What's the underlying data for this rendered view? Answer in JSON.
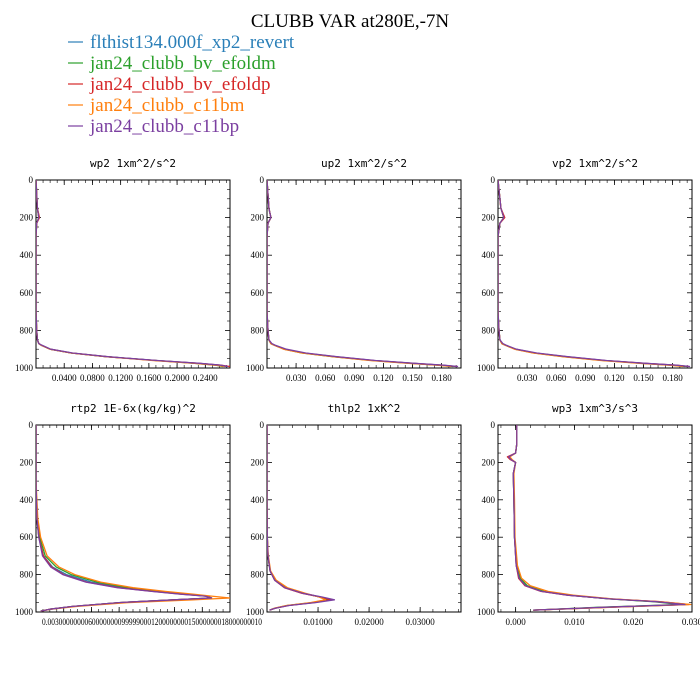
{
  "title": "CLUBB VAR at280E,-7N",
  "legend": [
    {
      "name": "flthist134.000f_xp2_revert",
      "color": "#2a7fb8"
    },
    {
      "name": "jan24_clubb_bv_efoldm",
      "color": "#2ca02c"
    },
    {
      "name": "jan24_clubb_bv_efoldp",
      "color": "#d62728"
    },
    {
      "name": "jan24_clubb_c11bm",
      "color": "#ff7f0e"
    },
    {
      "name": "jan24_clubb_c11bp",
      "color": "#7b3fa0"
    }
  ],
  "chart_data": [
    {
      "type": "line",
      "title": "wp2  1xm^2/s^2",
      "ylim": [
        1000,
        0
      ],
      "yticks": [
        0,
        200,
        400,
        600,
        800,
        1000
      ],
      "xlim": [
        0,
        0.275
      ],
      "xticks": [
        0.04,
        0.08,
        0.12,
        0.16,
        0.2,
        0.24
      ],
      "xtick_labels": [
        "0.0400",
        "0.0800",
        "0.1200",
        "0.1600",
        "0.2000",
        "0.2400"
      ],
      "y": [
        0,
        150,
        200,
        230,
        300,
        500,
        700,
        800,
        850,
        870,
        880,
        900,
        920,
        940,
        960,
        975,
        985,
        992
      ],
      "series": [
        {
          "name": "flthist134.000f_xp2_revert",
          "x": [
            0,
            0.002,
            0.004,
            0.001,
            0,
            0,
            0,
            0.001,
            0.002,
            0.004,
            0.008,
            0.02,
            0.05,
            0.1,
            0.17,
            0.23,
            0.26,
            0.27
          ]
        },
        {
          "name": "jan24_clubb_bv_efoldm",
          "x": [
            0,
            0.002,
            0.004,
            0.001,
            0,
            0,
            0,
            0.001,
            0.002,
            0.004,
            0.008,
            0.02,
            0.05,
            0.1,
            0.17,
            0.225,
            0.255,
            0.265
          ]
        },
        {
          "name": "jan24_clubb_bv_efoldp",
          "x": [
            0,
            0.002,
            0.005,
            0.001,
            0,
            0,
            0,
            0.001,
            0.002,
            0.004,
            0.008,
            0.02,
            0.05,
            0.1,
            0.17,
            0.23,
            0.262,
            0.275
          ]
        },
        {
          "name": "jan24_clubb_c11bm",
          "x": [
            0,
            0.002,
            0.004,
            0.001,
            0,
            0,
            0,
            0.001,
            0.002,
            0.004,
            0.008,
            0.02,
            0.05,
            0.1,
            0.165,
            0.225,
            0.255,
            0.268
          ]
        },
        {
          "name": "jan24_clubb_c11bp",
          "x": [
            0,
            0.002,
            0.004,
            0.001,
            0,
            0,
            0,
            0.001,
            0.002,
            0.004,
            0.009,
            0.021,
            0.052,
            0.102,
            0.172,
            0.232,
            0.262,
            0.272
          ]
        }
      ]
    },
    {
      "type": "line",
      "title": "up2  1xm^2/s^2",
      "ylim": [
        1000,
        0
      ],
      "yticks": [
        0,
        200,
        400,
        600,
        800,
        1000
      ],
      "xlim": [
        0,
        0.2
      ],
      "xticks": [
        0.03,
        0.06,
        0.09,
        0.12,
        0.15,
        0.18
      ],
      "xtick_labels": [
        "0.030",
        "0.060",
        "0.090",
        "0.120",
        "0.150",
        "0.180"
      ],
      "y": [
        0,
        150,
        200,
        230,
        300,
        500,
        700,
        800,
        850,
        870,
        880,
        900,
        920,
        940,
        960,
        975,
        985,
        992
      ],
      "series": [
        {
          "name": "flthist134.000f_xp2_revert",
          "x": [
            0,
            0.002,
            0.004,
            0.001,
            0,
            0,
            0,
            0.001,
            0.002,
            0.004,
            0.008,
            0.018,
            0.038,
            0.07,
            0.11,
            0.15,
            0.18,
            0.195
          ]
        },
        {
          "name": "jan24_clubb_bv_efoldm",
          "x": [
            0,
            0.002,
            0.004,
            0.001,
            0,
            0,
            0,
            0.001,
            0.002,
            0.004,
            0.008,
            0.018,
            0.036,
            0.068,
            0.108,
            0.148,
            0.177,
            0.192
          ]
        },
        {
          "name": "jan24_clubb_bv_efoldp",
          "x": [
            0,
            0.002,
            0.004,
            0.001,
            0,
            0,
            0,
            0.001,
            0.002,
            0.004,
            0.008,
            0.018,
            0.038,
            0.07,
            0.11,
            0.15,
            0.18,
            0.196
          ]
        },
        {
          "name": "jan24_clubb_c11bm",
          "x": [
            0,
            0.002,
            0.004,
            0.001,
            0,
            0,
            0,
            0.001,
            0.002,
            0.004,
            0.008,
            0.017,
            0.036,
            0.068,
            0.106,
            0.146,
            0.176,
            0.19
          ]
        },
        {
          "name": "jan24_clubb_c11bp",
          "x": [
            0,
            0.002,
            0.004,
            0.001,
            0,
            0,
            0,
            0.001,
            0.002,
            0.005,
            0.009,
            0.02,
            0.04,
            0.072,
            0.112,
            0.152,
            0.182,
            0.197
          ]
        }
      ]
    },
    {
      "type": "line",
      "title": "vp2  1xm^2/s^2",
      "ylim": [
        1000,
        0
      ],
      "yticks": [
        0,
        200,
        400,
        600,
        800,
        1000
      ],
      "xlim": [
        0,
        0.2
      ],
      "xticks": [
        0.03,
        0.06,
        0.09,
        0.12,
        0.15,
        0.18
      ],
      "xtick_labels": [
        "0.030",
        "0.060",
        "0.090",
        "0.120",
        "0.150",
        "0.180"
      ],
      "y": [
        0,
        150,
        200,
        230,
        300,
        500,
        700,
        800,
        850,
        870,
        880,
        900,
        920,
        940,
        960,
        975,
        985,
        992
      ],
      "series": [
        {
          "name": "flthist134.000f_xp2_revert",
          "x": [
            0,
            0.003,
            0.006,
            0.002,
            0,
            0,
            0,
            0.001,
            0.002,
            0.004,
            0.008,
            0.018,
            0.038,
            0.07,
            0.11,
            0.15,
            0.182,
            0.196
          ]
        },
        {
          "name": "jan24_clubb_bv_efoldm",
          "x": [
            0,
            0.003,
            0.006,
            0.002,
            0,
            0,
            0,
            0.001,
            0.002,
            0.004,
            0.008,
            0.018,
            0.037,
            0.068,
            0.108,
            0.148,
            0.179,
            0.193
          ]
        },
        {
          "name": "jan24_clubb_bv_efoldp",
          "x": [
            0,
            0.003,
            0.007,
            0.002,
            0,
            0,
            0,
            0.001,
            0.002,
            0.004,
            0.008,
            0.018,
            0.038,
            0.07,
            0.11,
            0.151,
            0.183,
            0.197
          ]
        },
        {
          "name": "jan24_clubb_c11bm",
          "x": [
            0,
            0.003,
            0.006,
            0.002,
            0,
            0,
            0,
            0.001,
            0.002,
            0.004,
            0.008,
            0.017,
            0.036,
            0.067,
            0.106,
            0.146,
            0.177,
            0.191
          ]
        },
        {
          "name": "jan24_clubb_c11bp",
          "x": [
            0,
            0.003,
            0.006,
            0.002,
            0,
            0,
            0,
            0.001,
            0.002,
            0.005,
            0.009,
            0.019,
            0.04,
            0.072,
            0.112,
            0.152,
            0.184,
            0.198
          ]
        }
      ]
    },
    {
      "type": "line",
      "title": "rtp2  1E-6x(kg/kg)^2",
      "ylim": [
        1000,
        0
      ],
      "yticks": [
        0,
        200,
        400,
        600,
        800,
        1000
      ],
      "xlim": [
        0,
        2.1e-06
      ],
      "xticks": [
        3e-07,
        6e-07,
        9e-07,
        1.2e-06,
        1.5e-06,
        1.8e-06
      ],
      "xtick_labels": [
        "0.0000003",
        "0.0000006",
        "0.0000009",
        "0.0000012",
        "0.0000015",
        "0.0000018"
      ],
      "xtick_text": "0.0030000000060000000099999000120000000015000000018000000010",
      "y": [
        0,
        300,
        500,
        600,
        700,
        760,
        800,
        840,
        870,
        890,
        905,
        915,
        925,
        935,
        950,
        970,
        985,
        995
      ],
      "series": [
        {
          "name": "flthist134.000f_xp2_revert",
          "x": [
            0,
            0,
            1e-08,
            3e-08,
            8e-08,
            1.8e-07,
            3.3e-07,
            6e-07,
            9.5e-07,
            1.3e-06,
            1.6e-06,
            1.85e-06,
            1.9e-06,
            1.5e-06,
            9e-07,
            4e-07,
            1.5e-07,
            5e-08
          ]
        },
        {
          "name": "jan24_clubb_bv_efoldm",
          "x": [
            0,
            0,
            1e-08,
            4e-08,
            1e-07,
            2.2e-07,
            3.8e-07,
            6.6e-07,
            1e-06,
            1.34e-06,
            1.63e-06,
            1.85e-06,
            1.9e-06,
            1.5e-06,
            9e-07,
            4e-07,
            1.5e-07,
            5e-08
          ]
        },
        {
          "name": "jan24_clubb_bv_efoldp",
          "x": [
            0,
            0,
            1e-08,
            3e-08,
            8e-08,
            1.7e-07,
            3e-07,
            5.5e-07,
            9e-07,
            1.26e-06,
            1.58e-06,
            1.84e-06,
            1.9e-06,
            1.5e-06,
            9e-07,
            4e-07,
            1.5e-07,
            5e-08
          ]
        },
        {
          "name": "jan24_clubb_c11bm",
          "x": [
            0,
            0,
            2e-08,
            5e-08,
            1.2e-07,
            2.5e-07,
            4.2e-07,
            7e-07,
            1.05e-06,
            1.4e-06,
            1.7e-06,
            1.9e-06,
            2.1e-06,
            1.7e-06,
            1e-06,
            4.5e-07,
            1.6e-07,
            5e-08
          ]
        },
        {
          "name": "jan24_clubb_c11bp",
          "x": [
            0,
            0,
            1e-08,
            3e-08,
            7e-08,
            1.6e-07,
            2.9e-07,
            5.4e-07,
            8.8e-07,
            1.25e-06,
            1.57e-06,
            1.83e-06,
            1.9e-06,
            1.5e-06,
            9e-07,
            4e-07,
            1.5e-07,
            5e-08
          ]
        }
      ]
    },
    {
      "type": "line",
      "title": "thlp2  1xK^2",
      "ylim": [
        1000,
        0
      ],
      "yticks": [
        0,
        200,
        400,
        600,
        800,
        1000
      ],
      "xlim": [
        0,
        0.038
      ],
      "xticks": [
        0.01,
        0.02,
        0.03
      ],
      "xtick_labels": [
        "0.01000",
        "0.02000",
        "0.03000"
      ],
      "y": [
        0,
        200,
        400,
        600,
        700,
        780,
        830,
        870,
        900,
        920,
        935,
        950,
        965,
        980,
        990
      ],
      "series": [
        {
          "name": "flthist134.000f_xp2_revert",
          "x": [
            0,
            0,
            0,
            5e-05,
            0.0002,
            0.0006,
            0.0015,
            0.0035,
            0.007,
            0.0105,
            0.0122,
            0.009,
            0.004,
            0.0015,
            0.0005
          ]
        },
        {
          "name": "jan24_clubb_bv_efoldm",
          "x": [
            0,
            0,
            0,
            5e-05,
            0.0002,
            0.0006,
            0.0016,
            0.0038,
            0.0072,
            0.0103,
            0.0118,
            0.0088,
            0.004,
            0.0015,
            0.0005
          ]
        },
        {
          "name": "jan24_clubb_bv_efoldp",
          "x": [
            0,
            0,
            0,
            5e-05,
            0.0002,
            0.0006,
            0.0015,
            0.0034,
            0.0068,
            0.0104,
            0.0125,
            0.0092,
            0.0042,
            0.0016,
            0.0005
          ]
        },
        {
          "name": "jan24_clubb_c11bm",
          "x": [
            0,
            0,
            0,
            6e-05,
            0.00025,
            0.0007,
            0.0018,
            0.004,
            0.0075,
            0.0102,
            0.0115,
            0.0085,
            0.0038,
            0.0014,
            0.0005
          ]
        },
        {
          "name": "jan24_clubb_c11bp",
          "x": [
            0,
            0,
            0,
            5e-05,
            0.0002,
            0.0006,
            0.0015,
            0.0035,
            0.007,
            0.0108,
            0.0132,
            0.0095,
            0.0043,
            0.0016,
            0.0005
          ]
        }
      ]
    },
    {
      "type": "line",
      "title": "wp3  1xm^3/s^3",
      "ylim": [
        1000,
        0
      ],
      "yticks": [
        0,
        200,
        400,
        600,
        800,
        1000
      ],
      "xlim": [
        -0.003,
        0.03
      ],
      "xticks": [
        0.0,
        0.01,
        0.02,
        0.03
      ],
      "xtick_labels": [
        "0.000",
        "0.010",
        "0.020",
        "0.030"
      ],
      "y": [
        0,
        100,
        150,
        170,
        185,
        200,
        260,
        400,
        600,
        750,
        820,
        860,
        890,
        910,
        930,
        945,
        960,
        975,
        990
      ],
      "series": [
        {
          "name": "flthist134.000f_xp2_revert",
          "x": [
            0.0002,
            0.0002,
            0.0,
            -0.0012,
            -0.0008,
            0.0,
            -0.0004,
            -0.0003,
            -0.0002,
            0.0001,
            0.0006,
            0.0018,
            0.0045,
            0.009,
            0.016,
            0.024,
            0.029,
            0.015,
            0.003
          ]
        },
        {
          "name": "jan24_clubb_bv_efoldm",
          "x": [
            0.0002,
            0.0002,
            0.0,
            -0.0011,
            -0.0007,
            0.0,
            -0.0004,
            -0.0003,
            -0.0002,
            0.0002,
            0.0008,
            0.002,
            0.0048,
            0.0092,
            0.0158,
            0.0235,
            0.028,
            0.014,
            0.003
          ]
        },
        {
          "name": "jan24_clubb_bv_efoldp",
          "x": [
            0.0002,
            0.0002,
            0.0,
            -0.0014,
            -0.0009,
            0.0,
            -0.0004,
            -0.0003,
            -0.0002,
            0.0001,
            0.0005,
            0.0016,
            0.0043,
            0.0088,
            0.0162,
            0.0245,
            0.0295,
            0.0155,
            0.003
          ]
        },
        {
          "name": "jan24_clubb_c11bm",
          "x": [
            0.0002,
            0.0002,
            0.0,
            -0.001,
            -0.0006,
            0.0,
            -0.0003,
            -0.0002,
            -0.0001,
            0.0003,
            0.001,
            0.0025,
            0.0055,
            0.0098,
            0.0165,
            0.0245,
            0.0298,
            0.016,
            0.003
          ]
        },
        {
          "name": "jan24_clubb_c11bp",
          "x": [
            0.0002,
            0.0002,
            0.0,
            -0.0012,
            -0.0008,
            0.0,
            -0.0004,
            -0.0003,
            -0.0002,
            0.0001,
            0.0006,
            0.0017,
            0.0044,
            0.0089,
            0.016,
            0.024,
            0.0288,
            0.0148,
            0.003
          ]
        }
      ]
    }
  ]
}
